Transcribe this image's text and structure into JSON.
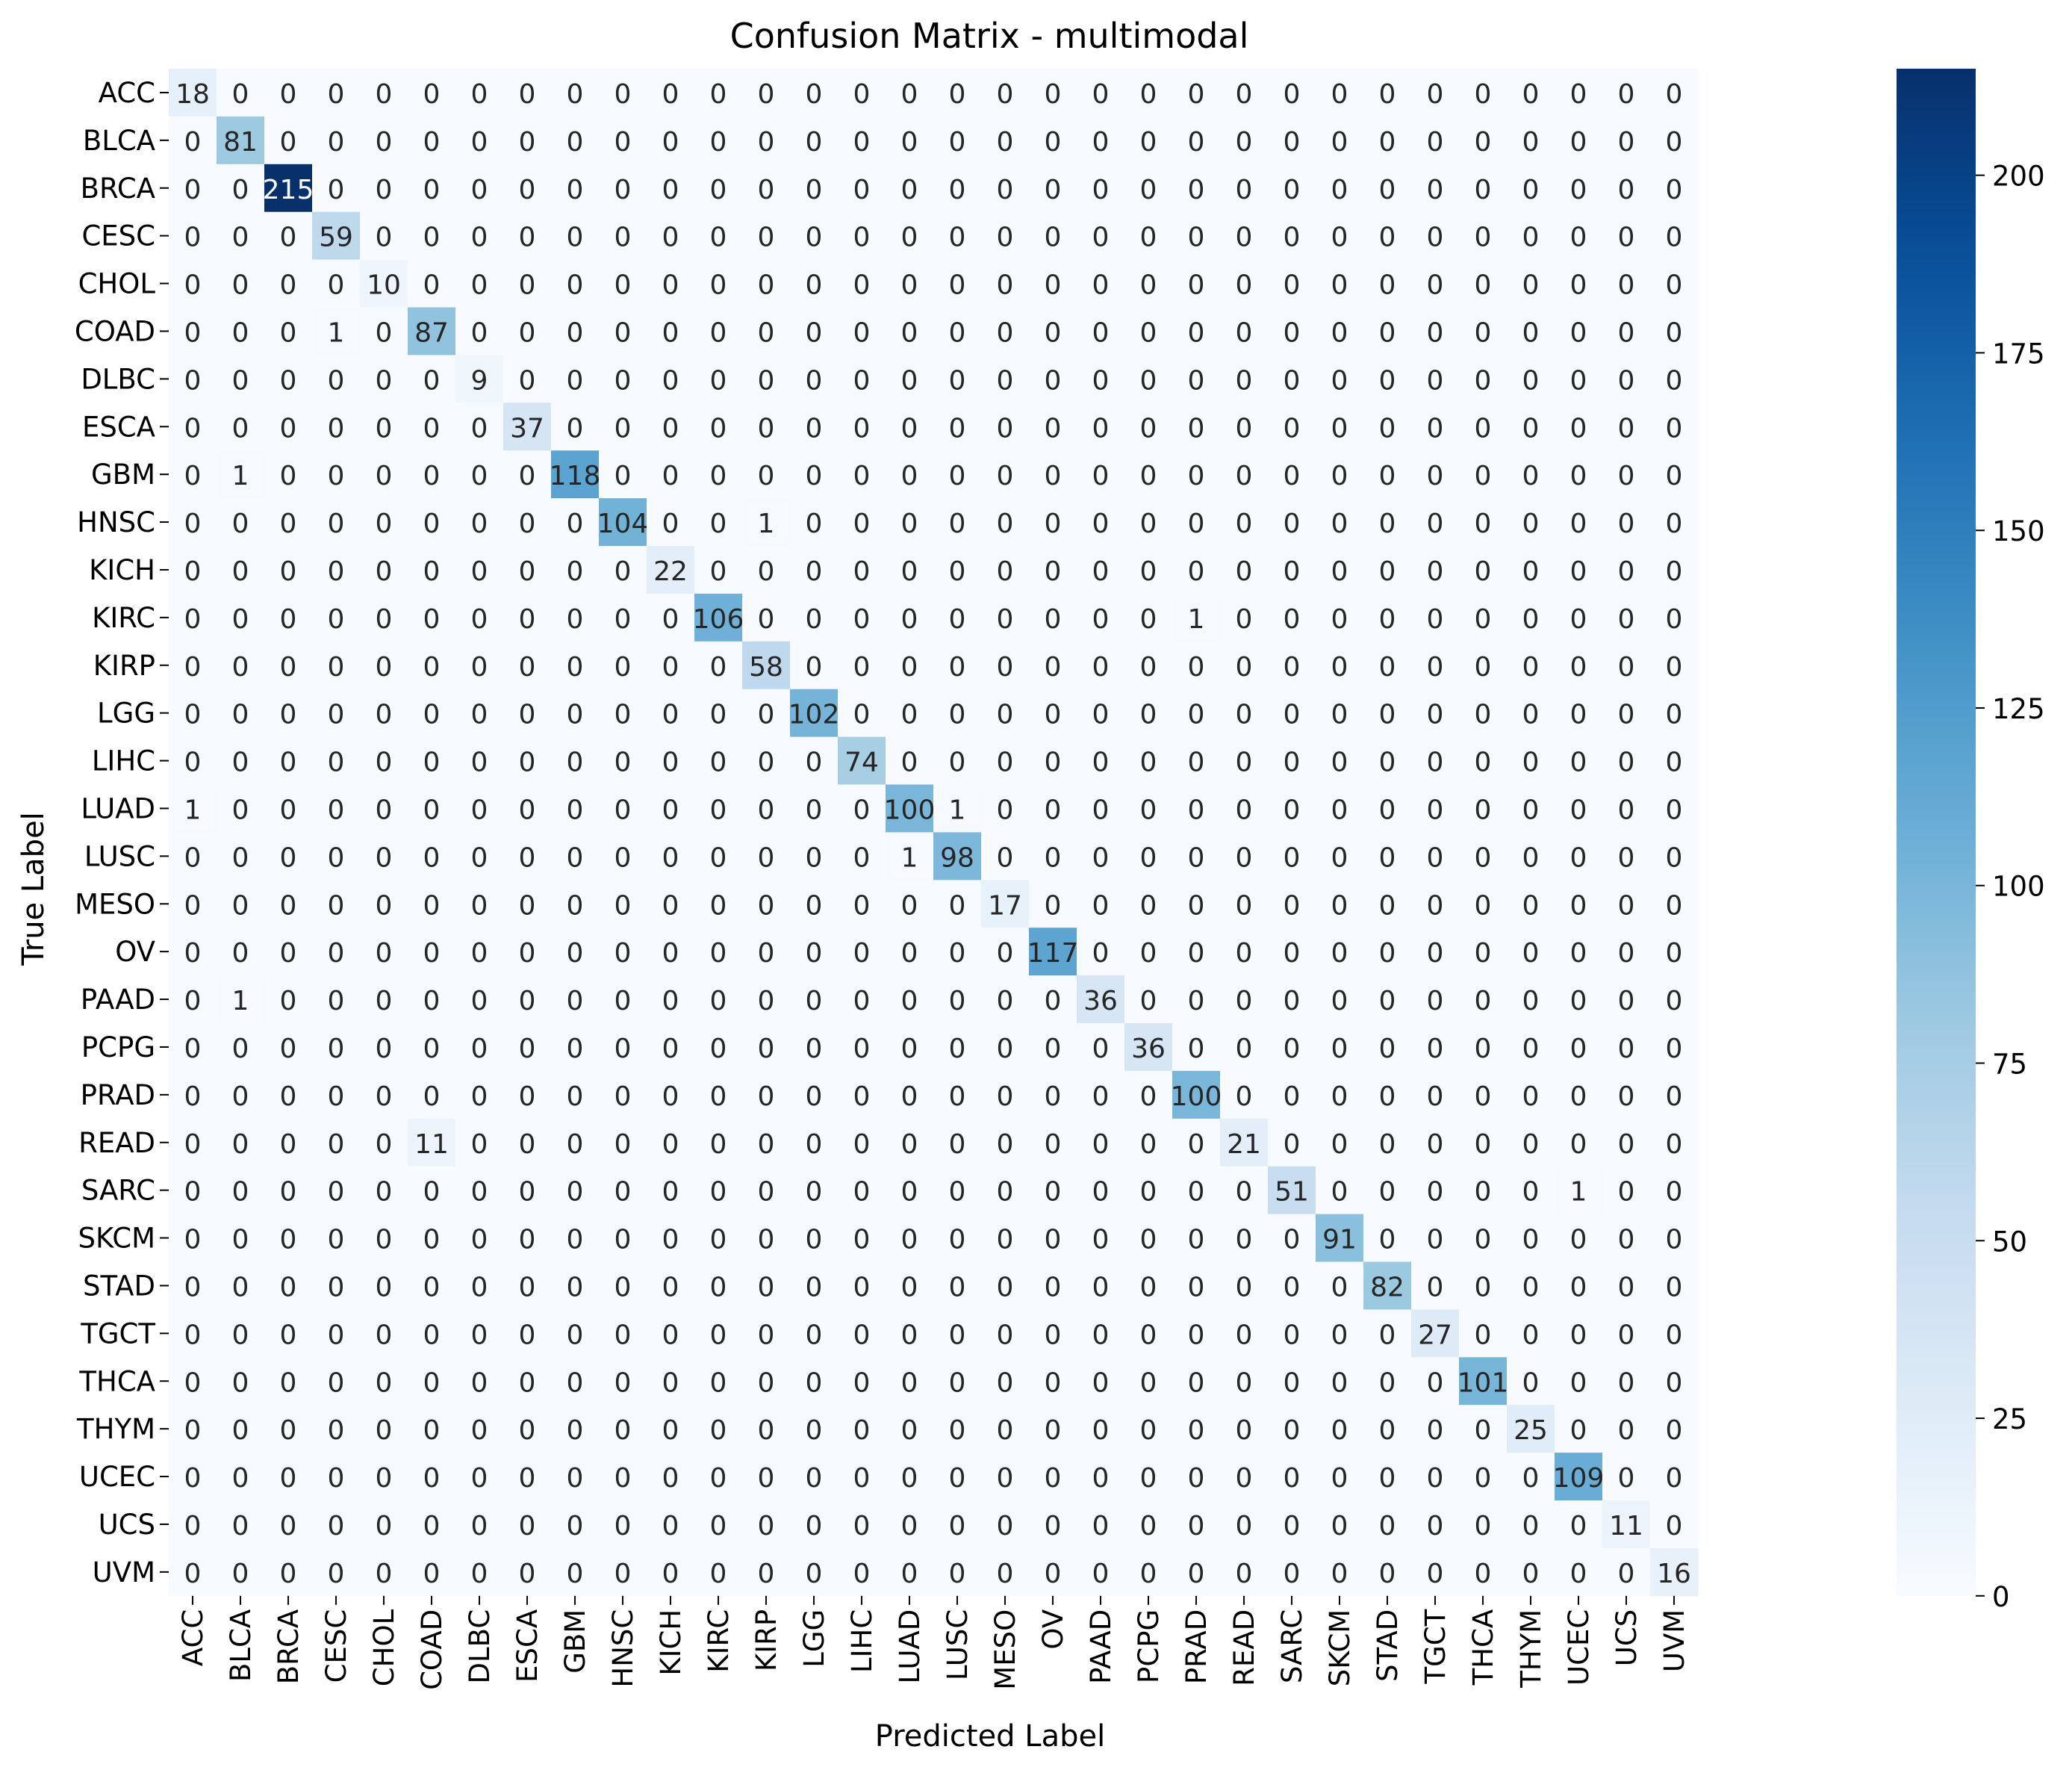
{
  "chart_data": {
    "type": "heatmap",
    "title": "Confusion Matrix - multimodal",
    "xlabel": "Predicted Label",
    "ylabel": "True Label",
    "labels": [
      "ACC",
      "BLCA",
      "BRCA",
      "CESC",
      "CHOL",
      "COAD",
      "DLBC",
      "ESCA",
      "GBM",
      "HNSC",
      "KICH",
      "KIRC",
      "KIRP",
      "LGG",
      "LIHC",
      "LUAD",
      "LUSC",
      "MESO",
      "OV",
      "PAAD",
      "PCPG",
      "PRAD",
      "READ",
      "SARC",
      "SKCM",
      "STAD",
      "TGCT",
      "THCA",
      "THYM",
      "UCEC",
      "UCS",
      "UVM"
    ],
    "diagonal": [
      18,
      81,
      215,
      59,
      10,
      87,
      9,
      37,
      118,
      104,
      22,
      106,
      58,
      102,
      74,
      100,
      98,
      17,
      117,
      36,
      36,
      100,
      21,
      51,
      91,
      82,
      27,
      101,
      25,
      109,
      11,
      16
    ],
    "off_diagonal": [
      {
        "row": "COAD",
        "col": "CESC",
        "value": 1
      },
      {
        "row": "GBM",
        "col": "BLCA",
        "value": 1
      },
      {
        "row": "HNSC",
        "col": "KIRP",
        "value": 1
      },
      {
        "row": "KIRC",
        "col": "PRAD",
        "value": 1
      },
      {
        "row": "LUAD",
        "col": "ACC",
        "value": 1
      },
      {
        "row": "LUAD",
        "col": "LUSC",
        "value": 1
      },
      {
        "row": "LUSC",
        "col": "LUAD",
        "value": 1
      },
      {
        "row": "PAAD",
        "col": "BLCA",
        "value": 1
      },
      {
        "row": "READ",
        "col": "COAD",
        "value": 11
      },
      {
        "row": "SARC",
        "col": "UCEC",
        "value": 1
      }
    ],
    "colormap": "Blues",
    "color_low": "#f7fbff",
    "color_high": "#08306b",
    "vmin": 0,
    "vmax": 215,
    "colorbar_ticks": [
      0,
      25,
      50,
      75,
      100,
      125,
      150,
      175,
      200
    ]
  }
}
